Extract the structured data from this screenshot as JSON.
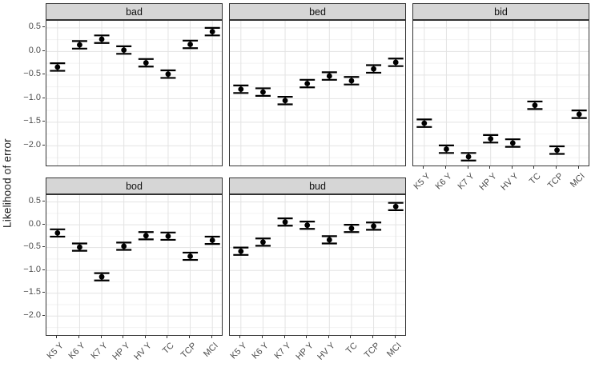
{
  "colors": {
    "strip_bg": "#d6d6d6",
    "panel_border": "#333333",
    "grid_major": "#e3e3e3",
    "grid_minor": "#f2f2f2",
    "point": "#000000",
    "tick_label": "#4d4d4d",
    "axis_title": "#1a1a1a",
    "tick_mark": "#333333"
  },
  "chart_data": {
    "type": "pointrange",
    "title": "",
    "xlabel": "",
    "ylabel": "Likelihood of error",
    "grid": "on",
    "legend_position": "none",
    "categories": [
      "K5 Y",
      "K6 Y",
      "K7 Y",
      "HP Y",
      "HV Y",
      "TC",
      "TCP",
      "MCI"
    ],
    "error_half_height": 0.08,
    "facets": [
      {
        "label": "bad",
        "values": [
          -0.33,
          0.14,
          0.26,
          0.03,
          -0.24,
          -0.48,
          0.15,
          0.42
        ]
      },
      {
        "label": "bed",
        "values": [
          -0.8,
          -0.86,
          -1.04,
          -0.68,
          -0.52,
          -0.62,
          -0.37,
          -0.23
        ]
      },
      {
        "label": "bid",
        "values": [
          -1.52,
          -2.07,
          -2.23,
          -1.85,
          -1.94,
          -1.14,
          -2.09,
          -1.33
        ]
      },
      {
        "label": "bod",
        "values": [
          -0.18,
          -0.49,
          -1.14,
          -0.47,
          -0.24,
          -0.25,
          -0.69,
          -0.34
        ]
      },
      {
        "label": "bud",
        "values": [
          -0.58,
          -0.38,
          0.06,
          -0.01,
          -0.33,
          -0.08,
          -0.03,
          0.4
        ]
      }
    ],
    "y_axis": {
      "tick_values": [
        0.5,
        0.0,
        -0.5,
        -1.0,
        -1.5,
        -2.0
      ],
      "tick_labels": [
        "0.5",
        "0.0",
        "−0.5",
        "−1.0",
        "−1.5",
        "−2.0"
      ],
      "range_top": 0.65,
      "range_bottom": -2.45,
      "minor_step": 0.25
    }
  }
}
